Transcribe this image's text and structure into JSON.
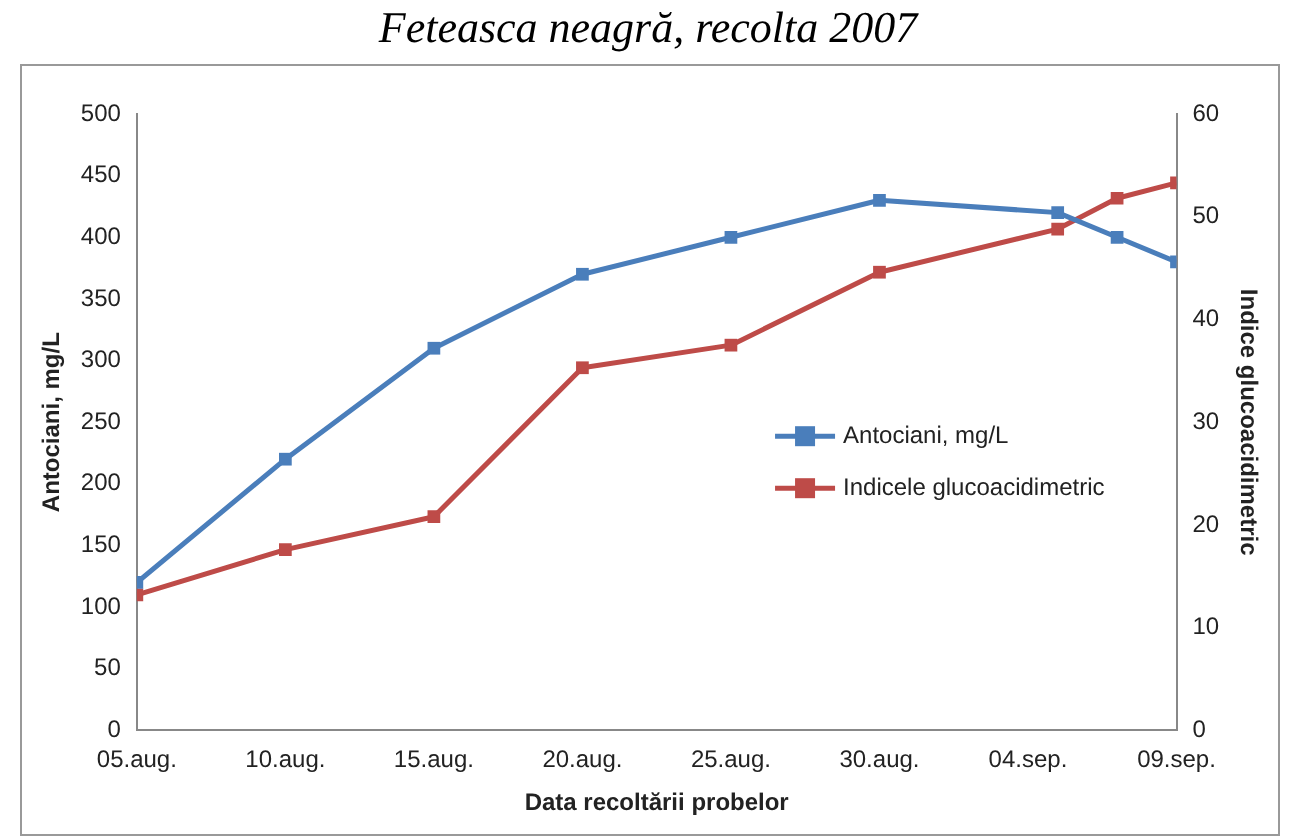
{
  "chart_data": {
    "type": "line",
    "title": "Feteasca neagră, recolta 2007",
    "xlabel": "Data recoltării probelor",
    "ylabel": "Antociani, mg/L",
    "y2label": "Indice glucoacidimetric",
    "x": [
      "--08-05",
      "--08-10",
      "--08-15",
      "--08-20",
      "--08-25",
      "--08-30",
      "--09-05",
      "--09-07",
      "--09-09"
    ],
    "series": [
      {
        "name": "Antociani, mg/L",
        "color": "#4a7ebb",
        "values": [
          120,
          220,
          310,
          370,
          400,
          430,
          420,
          400,
          380
        ]
      },
      {
        "name": "Indicele glucoacidimetric",
        "color": "#be4b48",
        "axis": "y2",
        "values": [
          13.2,
          17.6,
          20.8,
          35.3,
          37.5,
          44.6,
          48.8,
          51.8,
          53.3
        ]
      }
    ],
    "xlim": [
      "--08-05",
      "--09-09"
    ],
    "xticks": [
      {
        "value": "--08-05",
        "label": "05.aug."
      },
      {
        "value": "--08-10",
        "label": "10.aug."
      },
      {
        "value": "--08-15",
        "label": "15.aug."
      },
      {
        "value": "--08-20",
        "label": "20.aug."
      },
      {
        "value": "--08-25",
        "label": "25.aug."
      },
      {
        "value": "--08-30",
        "label": "30.aug."
      },
      {
        "value": "--09-04",
        "label": "04.sep."
      },
      {
        "value": "--09-09",
        "label": "09.sep."
      }
    ],
    "ylim": [
      0,
      500
    ],
    "yticks": [
      0,
      50,
      100,
      150,
      200,
      250,
      300,
      350,
      400,
      450,
      500
    ],
    "y2lim": [
      0,
      60
    ],
    "y2ticks": [
      0,
      10,
      20,
      30,
      40,
      50,
      60
    ],
    "grid": false,
    "legend": "right",
    "marker": "square",
    "line_style": "solid"
  }
}
